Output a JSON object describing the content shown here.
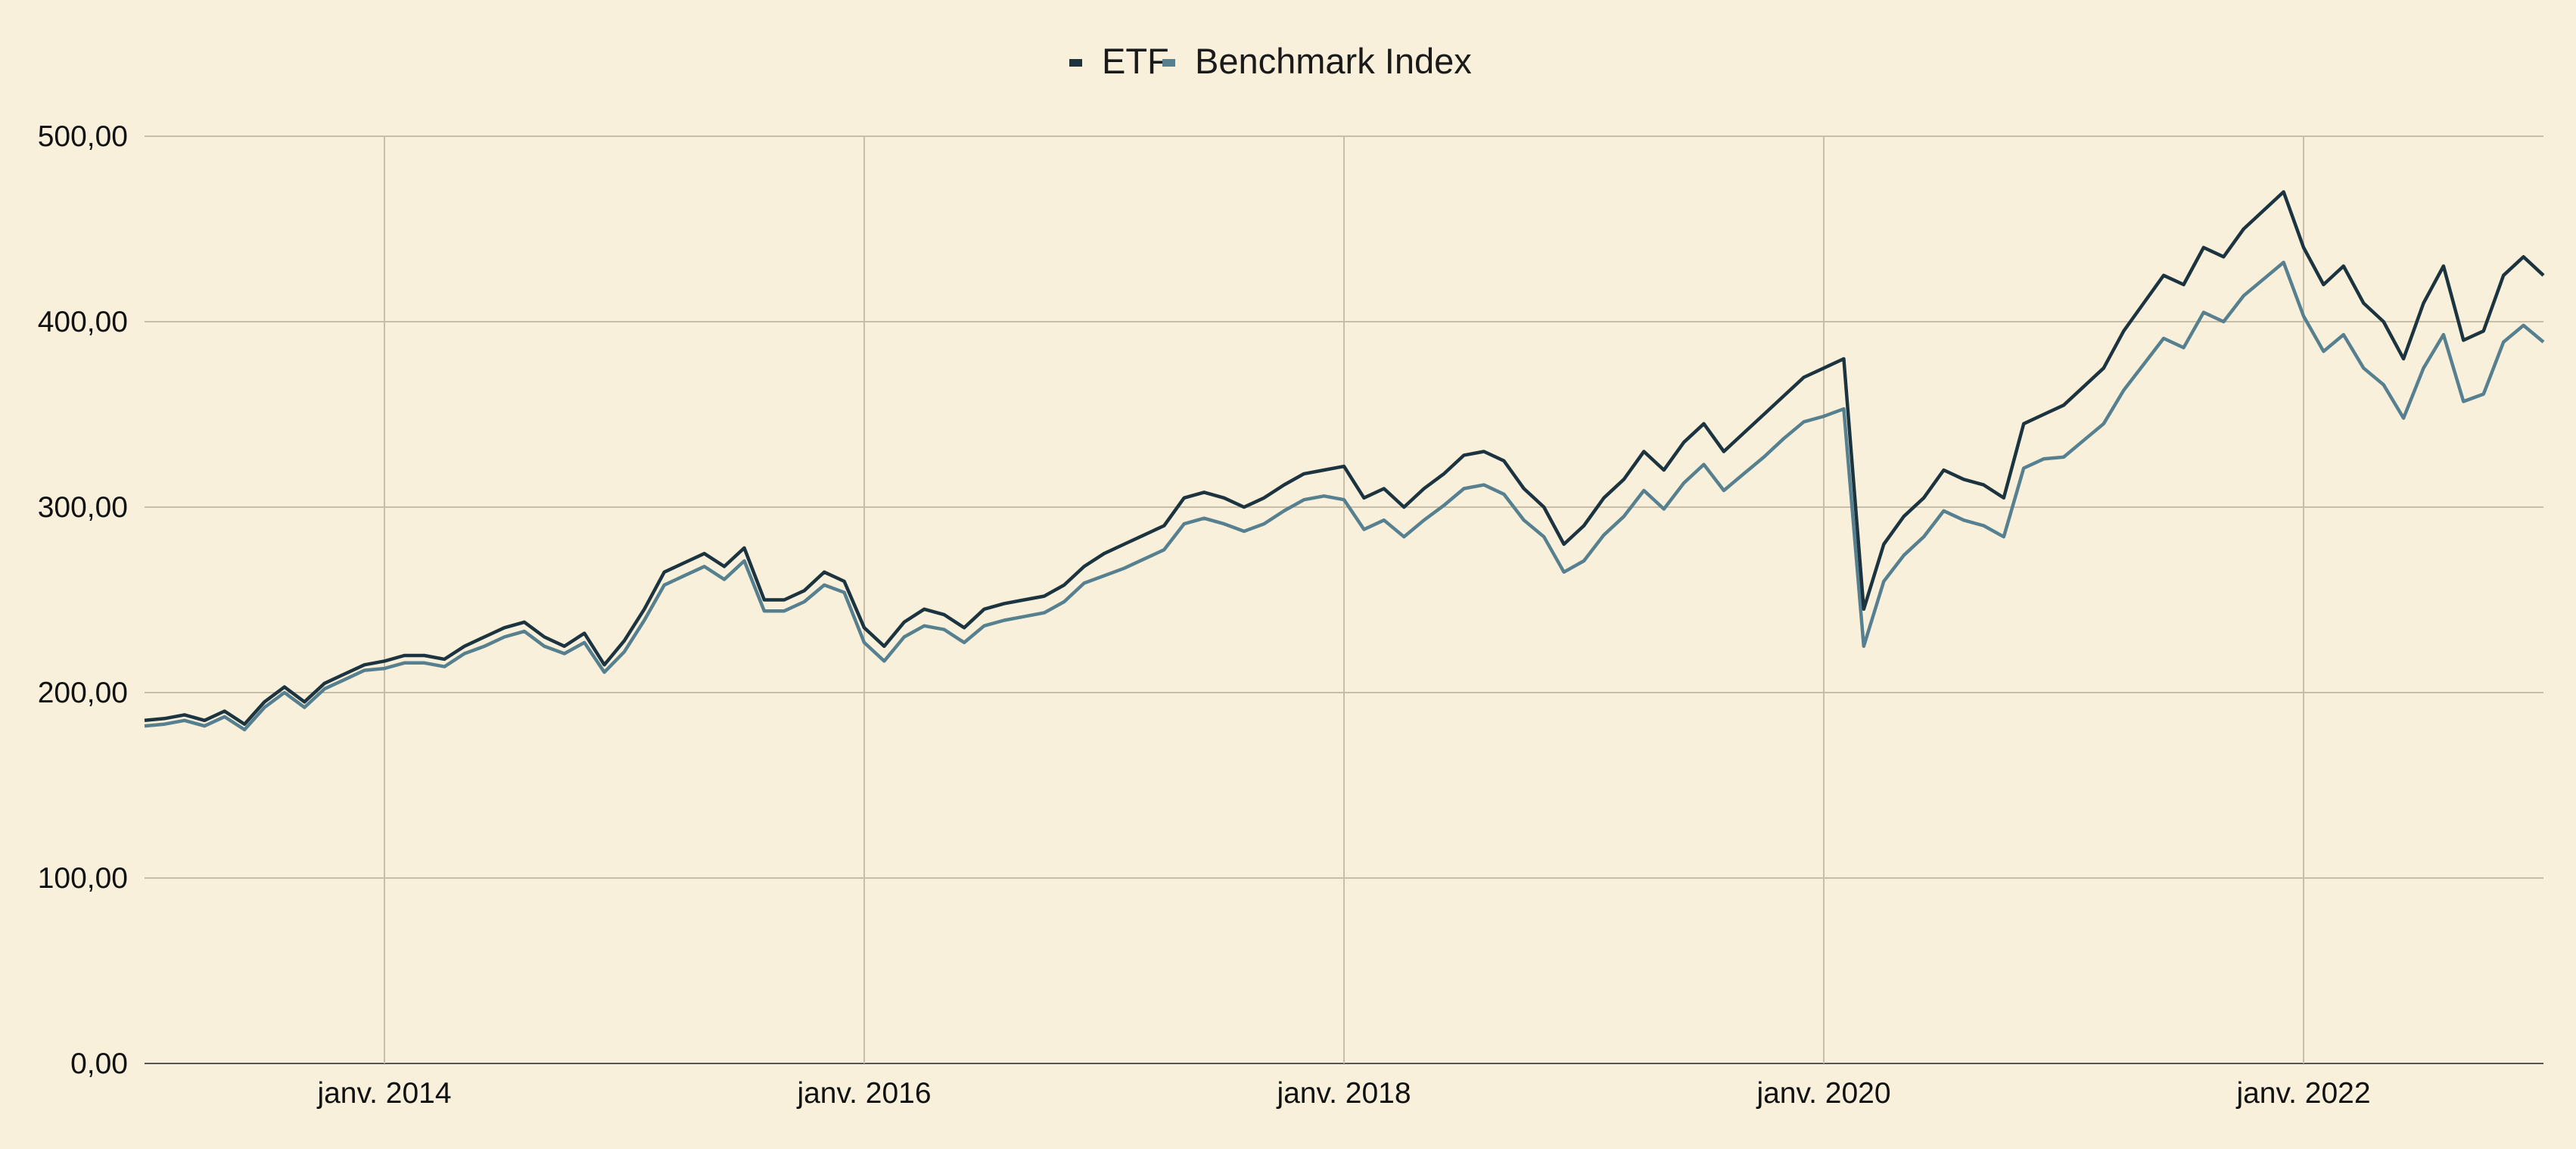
{
  "chart_data": {
    "type": "line",
    "title": "",
    "xlabel": "",
    "ylabel": "",
    "ylim": [
      0,
      500
    ],
    "xlim": [
      "2013-01",
      "2023-01"
    ],
    "grid": true,
    "legend_position": "top-center",
    "y_ticks": [
      "0,00",
      "100,00",
      "200,00",
      "300,00",
      "400,00",
      "500,00"
    ],
    "y_tick_values": [
      0,
      100,
      200,
      300,
      400,
      500
    ],
    "x_ticks": [
      "janv. 2014",
      "janv. 2016",
      "janv. 2018",
      "janv. 2020",
      "janv. 2022"
    ],
    "x_tick_dates": [
      "2014-01",
      "2016-01",
      "2018-01",
      "2020-01",
      "2022-01"
    ],
    "x": [
      "2013-01",
      "2013-02",
      "2013-03",
      "2013-04",
      "2013-05",
      "2013-06",
      "2013-07",
      "2013-08",
      "2013-09",
      "2013-10",
      "2013-11",
      "2013-12",
      "2014-01",
      "2014-02",
      "2014-03",
      "2014-04",
      "2014-05",
      "2014-06",
      "2014-07",
      "2014-08",
      "2014-09",
      "2014-10",
      "2014-11",
      "2014-12",
      "2015-01",
      "2015-02",
      "2015-03",
      "2015-04",
      "2015-05",
      "2015-06",
      "2015-07",
      "2015-08",
      "2015-09",
      "2015-10",
      "2015-11",
      "2015-12",
      "2016-01",
      "2016-02",
      "2016-03",
      "2016-04",
      "2016-05",
      "2016-06",
      "2016-07",
      "2016-08",
      "2016-09",
      "2016-10",
      "2016-11",
      "2016-12",
      "2017-01",
      "2017-02",
      "2017-03",
      "2017-04",
      "2017-05",
      "2017-06",
      "2017-07",
      "2017-08",
      "2017-09",
      "2017-10",
      "2017-11",
      "2017-12",
      "2018-01",
      "2018-02",
      "2018-03",
      "2018-04",
      "2018-05",
      "2018-06",
      "2018-07",
      "2018-08",
      "2018-09",
      "2018-10",
      "2018-11",
      "2018-12",
      "2019-01",
      "2019-02",
      "2019-03",
      "2019-04",
      "2019-05",
      "2019-06",
      "2019-07",
      "2019-08",
      "2019-09",
      "2019-10",
      "2019-11",
      "2019-12",
      "2020-01",
      "2020-02",
      "2020-03",
      "2020-04",
      "2020-05",
      "2020-06",
      "2020-07",
      "2020-08",
      "2020-09",
      "2020-10",
      "2020-11",
      "2020-12",
      "2021-01",
      "2021-02",
      "2021-03",
      "2021-04",
      "2021-05",
      "2021-06",
      "2021-07",
      "2021-08",
      "2021-09",
      "2021-10",
      "2021-11",
      "2021-12",
      "2022-01",
      "2022-02",
      "2022-03",
      "2022-04",
      "2022-05",
      "2022-06",
      "2022-07",
      "2022-08",
      "2022-09",
      "2022-10",
      "2022-11",
      "2022-12",
      "2023-01"
    ],
    "series": [
      {
        "name": "ETF",
        "color": "#1b3440",
        "values": [
          185,
          186,
          188,
          185,
          190,
          183,
          195,
          203,
          195,
          205,
          210,
          215,
          217,
          220,
          220,
          218,
          225,
          230,
          235,
          238,
          230,
          225,
          232,
          215,
          228,
          245,
          265,
          270,
          275,
          268,
          278,
          250,
          250,
          255,
          265,
          260,
          235,
          225,
          238,
          245,
          242,
          235,
          245,
          248,
          250,
          252,
          258,
          268,
          275,
          280,
          285,
          290,
          305,
          308,
          305,
          300,
          305,
          312,
          318,
          320,
          322,
          305,
          310,
          300,
          310,
          318,
          328,
          330,
          325,
          310,
          300,
          280,
          290,
          305,
          315,
          330,
          320,
          335,
          345,
          330,
          340,
          350,
          360,
          370,
          375,
          380,
          245,
          280,
          295,
          305,
          320,
          315,
          312,
          305,
          345,
          350,
          355,
          365,
          375,
          395,
          410,
          425,
          420,
          440,
          435,
          450,
          460,
          470,
          440,
          420,
          430,
          410,
          400,
          380,
          410,
          430,
          390,
          395,
          425,
          435,
          425
        ]
      },
      {
        "name": "Benchmark Index",
        "color": "#56808f",
        "values": [
          182,
          183,
          185,
          182,
          187,
          180,
          192,
          200,
          192,
          202,
          207,
          212,
          213,
          216,
          216,
          214,
          221,
          225,
          230,
          233,
          225,
          221,
          227,
          211,
          222,
          239,
          258,
          263,
          268,
          261,
          271,
          244,
          244,
          249,
          258,
          254,
          227,
          217,
          230,
          236,
          234,
          227,
          236,
          239,
          241,
          243,
          249,
          259,
          263,
          267,
          272,
          277,
          291,
          294,
          291,
          287,
          291,
          298,
          304,
          306,
          304,
          288,
          293,
          284,
          293,
          301,
          310,
          312,
          307,
          293,
          284,
          265,
          271,
          285,
          295,
          309,
          299,
          313,
          323,
          309,
          318,
          327,
          337,
          346,
          349,
          353,
          225,
          260,
          274,
          284,
          298,
          293,
          290,
          284,
          321,
          326,
          327,
          336,
          345,
          363,
          377,
          391,
          386,
          405,
          400,
          414,
          423,
          432,
          403,
          384,
          393,
          375,
          366,
          348,
          375,
          393,
          357,
          361,
          389,
          398,
          389
        ]
      }
    ]
  },
  "colors": {
    "background": "#f8f0da",
    "grid": "#c8bea8"
  }
}
